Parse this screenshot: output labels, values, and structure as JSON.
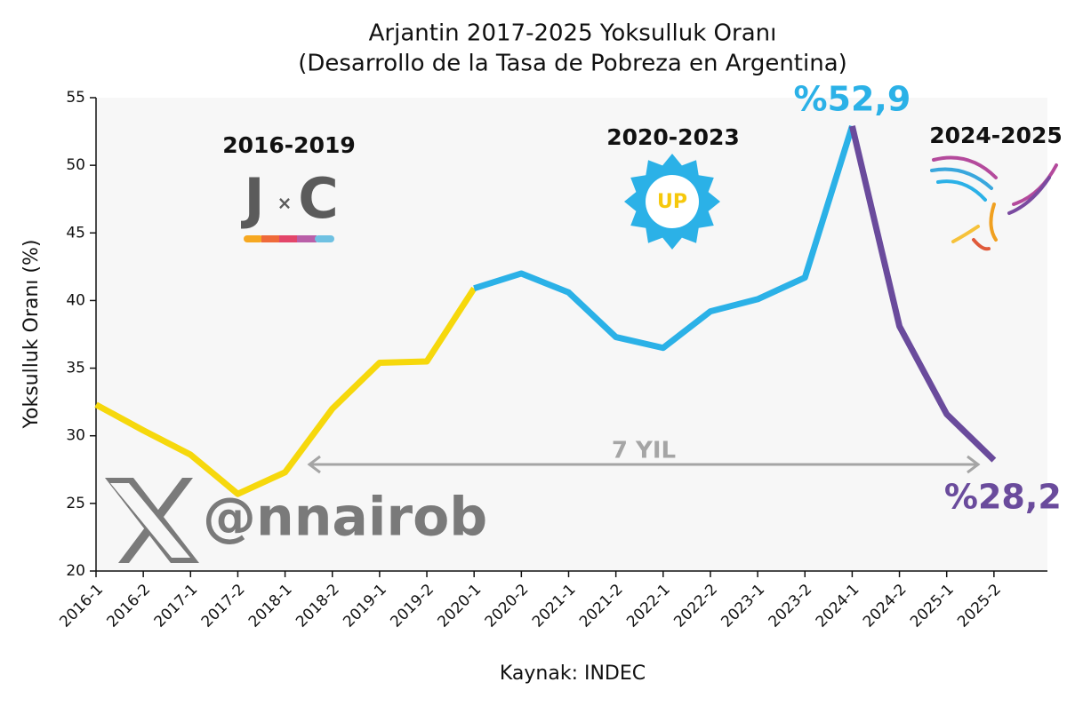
{
  "chart_data": {
    "type": "line",
    "title": "Arjantin 2017-2025 Yoksulluk Oranı",
    "subtitle": "(Desarrollo de la Tasa de Pobreza en Argentina)",
    "x_label": "Kaynak: INDEC",
    "y_label": "Yoksulluk Oranı (%)",
    "categories": [
      "2016-1",
      "2016-2",
      "2017-1",
      "2017-2",
      "2018-1",
      "2018-2",
      "2019-1",
      "2019-2",
      "2020-1",
      "2020-2",
      "2021-1",
      "2021-2",
      "2022-1",
      "2022-2",
      "2023-1",
      "2023-2",
      "2024-1",
      "2024-2",
      "2025-1",
      "2025-2"
    ],
    "series": [
      {
        "color": "#f6d80c",
        "values": [
          32.3,
          30.4,
          28.6,
          25.7,
          27.3,
          32.0,
          35.4,
          35.5,
          40.9,
          null,
          null,
          null,
          null,
          null,
          null,
          null,
          null,
          null,
          null,
          null
        ]
      },
      {
        "color": "#2bb1e7",
        "values": [
          null,
          null,
          null,
          null,
          null,
          null,
          null,
          null,
          40.9,
          42.0,
          40.6,
          37.3,
          36.5,
          39.2,
          40.1,
          41.7,
          52.9,
          null,
          null,
          null
        ],
        "value_labels": [
          null,
          null,
          null,
          null,
          null,
          null,
          null,
          null,
          null,
          null,
          null,
          null,
          null,
          null,
          null,
          null,
          "%52,9",
          null,
          null,
          null
        ]
      },
      {
        "color": "#6a4b9c",
        "values": [
          null,
          null,
          null,
          null,
          null,
          null,
          null,
          null,
          null,
          null,
          null,
          null,
          null,
          null,
          null,
          null,
          52.9,
          38.1,
          31.6,
          28.2
        ],
        "value_labels": [
          null,
          null,
          null,
          null,
          null,
          null,
          null,
          null,
          null,
          null,
          null,
          null,
          null,
          null,
          null,
          null,
          null,
          null,
          null,
          "%28,2"
        ]
      }
    ],
    "ylim": [
      20,
      55
    ],
    "yticks": [
      20,
      25,
      30,
      35,
      40,
      45,
      50,
      55
    ],
    "periods": [
      "2016-2019",
      "2020-2023",
      "2024-2025"
    ],
    "logo_texts": [
      "J",
      "×",
      "C",
      "UP"
    ],
    "span_label": "7 YIL",
    "watermark": "@nnairob"
  }
}
